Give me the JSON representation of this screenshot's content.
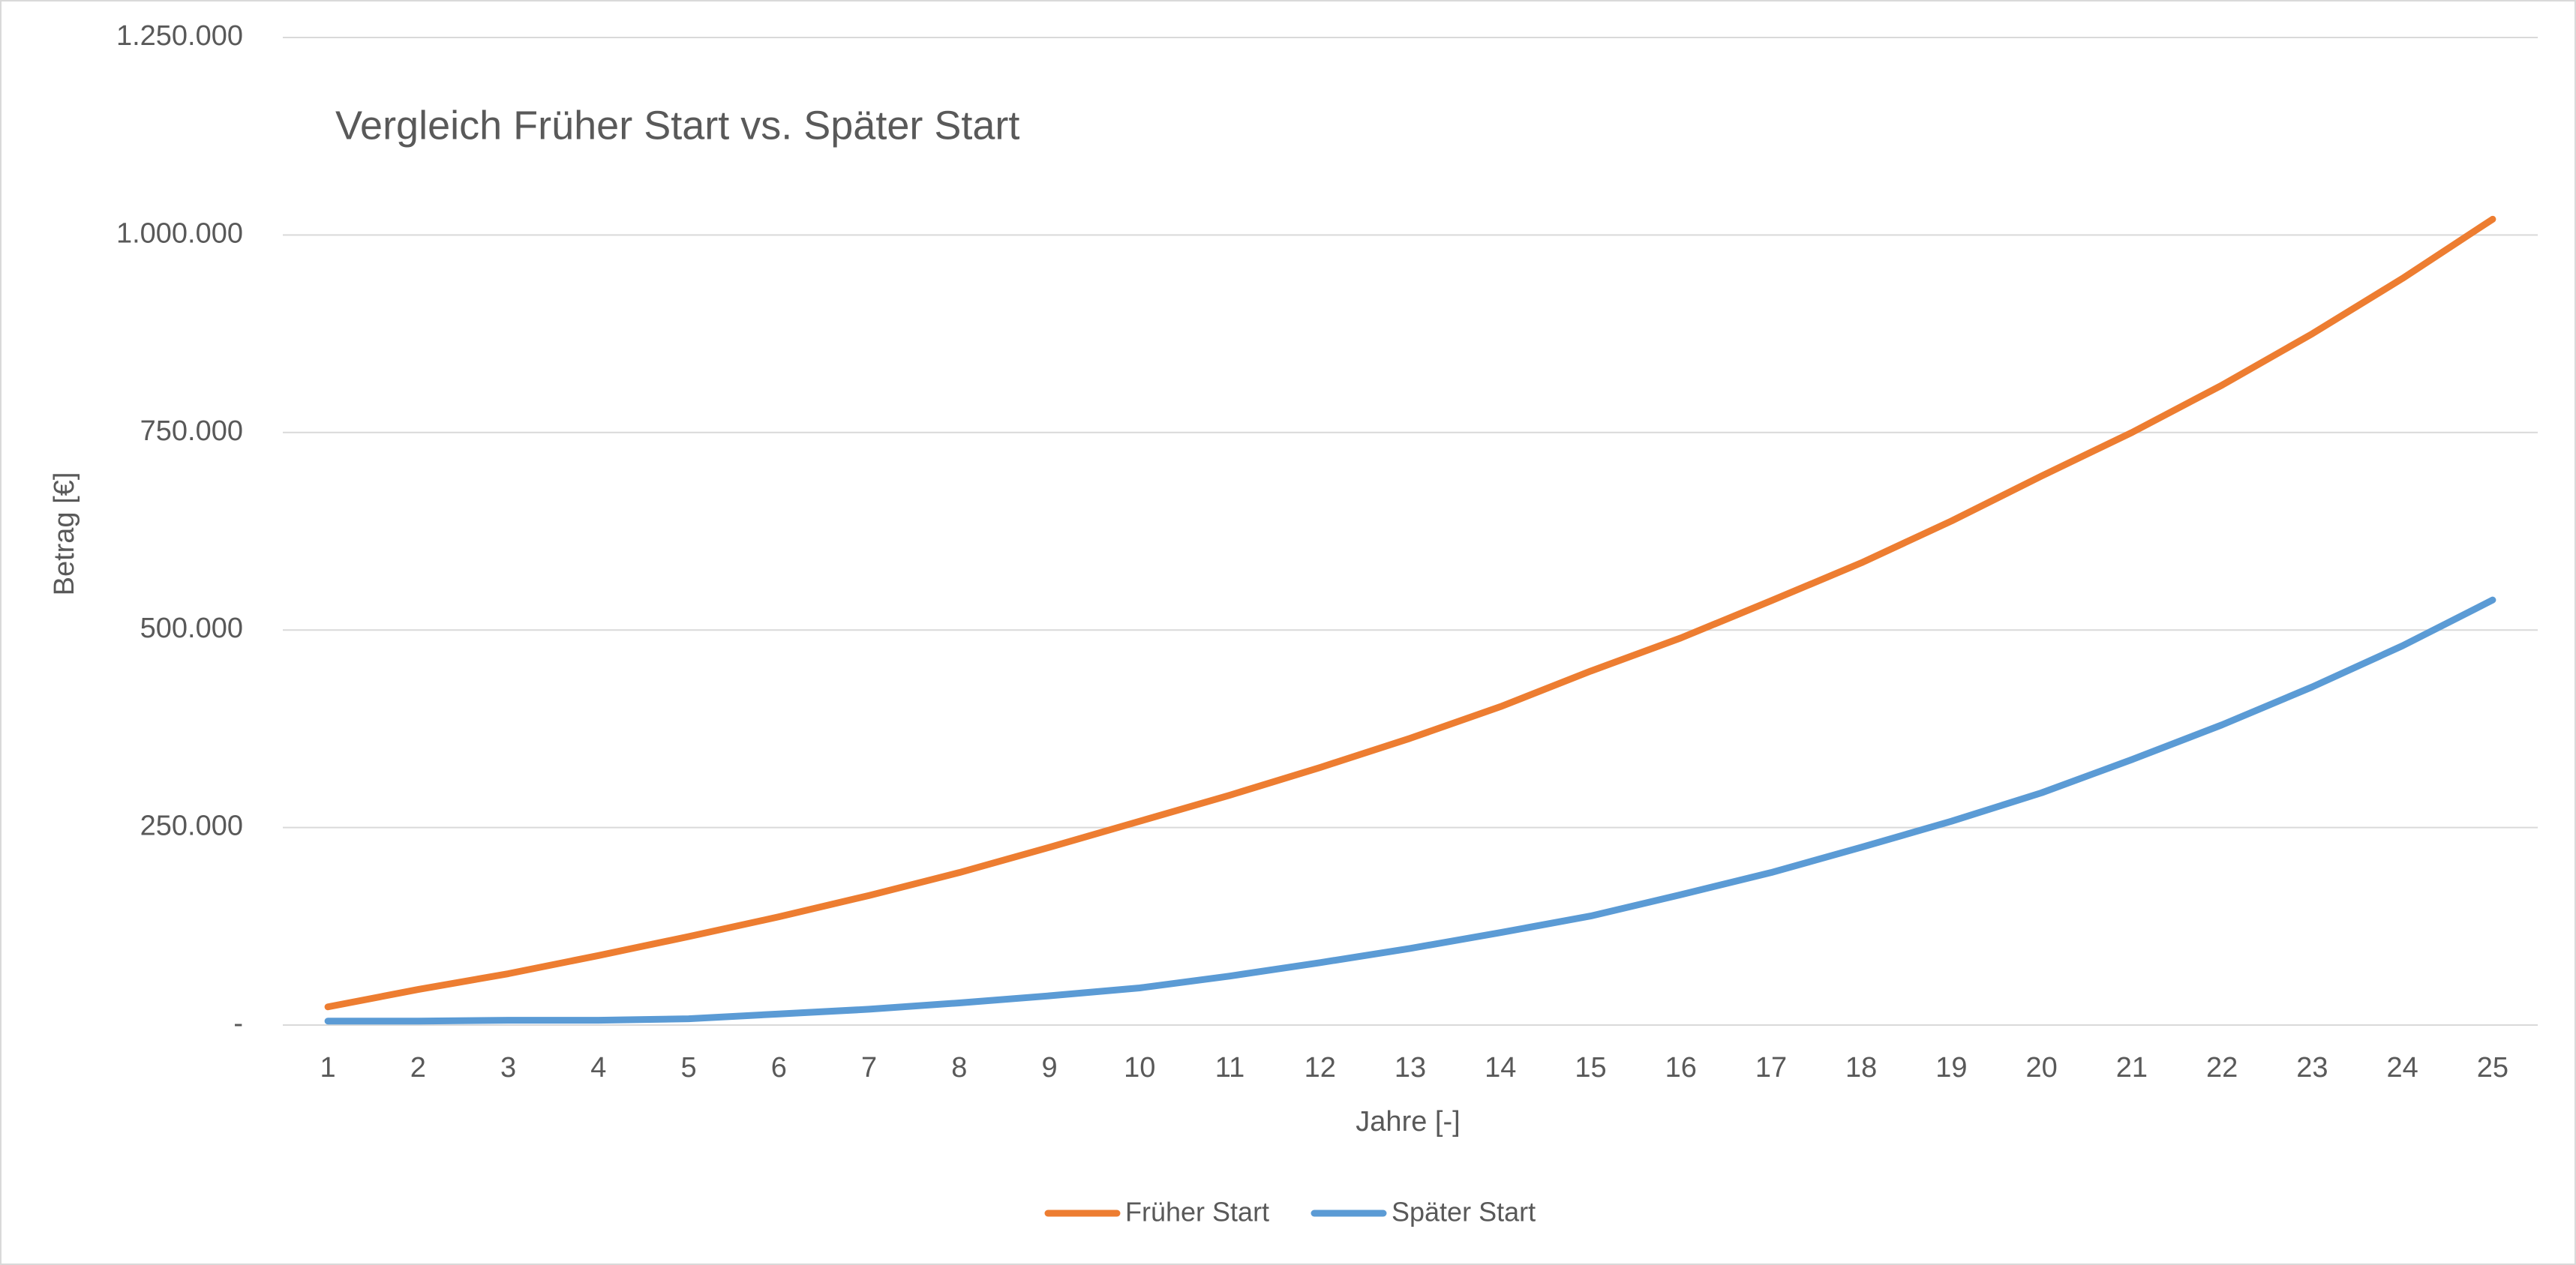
{
  "chart_data": {
    "type": "line",
    "title": "Vergleich Früher Start vs. Später Start",
    "x_label": "Jahre [-]",
    "y_label": "Betrag [€]",
    "categories": [
      "1",
      "2",
      "3",
      "4",
      "5",
      "6",
      "7",
      "8",
      "9",
      "10",
      "11",
      "12",
      "13",
      "14",
      "15",
      "16",
      "17",
      "18",
      "19",
      "20",
      "21",
      "22",
      "23",
      "24",
      "25"
    ],
    "series": [
      {
        "name": "Früher Start",
        "color": "#ed7d31",
        "values": [
          23000,
          45000,
          65000,
          88000,
          112000,
          137000,
          164000,
          193000,
          225000,
          258000,
          291000,
          326000,
          363000,
          403000,
          448000,
          490000,
          537000,
          585000,
          638000,
          695000,
          750000,
          810000,
          875000,
          945000,
          1020000
        ]
      },
      {
        "name": "Später Start",
        "color": "#5b9bd5",
        "values": [
          5000,
          5000,
          6000,
          6000,
          8000,
          14000,
          20000,
          28000,
          37000,
          47000,
          62000,
          79000,
          97000,
          117000,
          138000,
          165000,
          193000,
          225000,
          258000,
          294000,
          336000,
          380000,
          428000,
          480000,
          538000
        ]
      }
    ],
    "ylim": [
      0,
      1250000
    ],
    "yticks": [
      {
        "value": 0,
        "label": "-"
      },
      {
        "value": 250000,
        "label": "250.000"
      },
      {
        "value": 500000,
        "label": "500.000"
      },
      {
        "value": 750000,
        "label": "750.000"
      },
      {
        "value": 1000000,
        "label": "1.000.000"
      },
      {
        "value": 1250000,
        "label": "1.250.000"
      }
    ],
    "grid": true,
    "legend": "bottom"
  }
}
